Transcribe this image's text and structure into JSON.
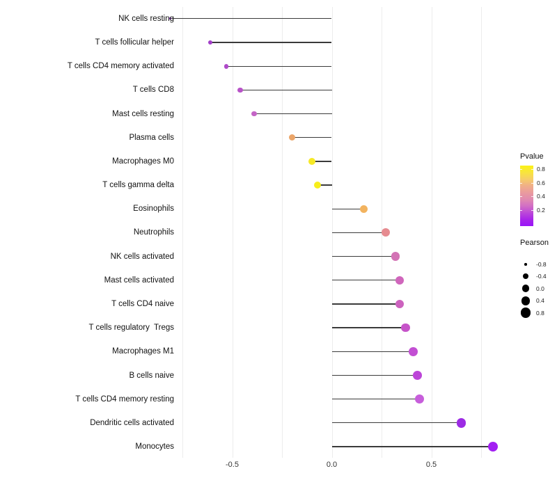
{
  "chart_data": {
    "type": "lollipop",
    "orientation": "horizontal",
    "title": "",
    "xlabel": "",
    "ylabel": "",
    "xlim": [
      -0.89,
      0.89
    ],
    "grid": "vertical, light gray, 0.25 steps",
    "x_ticks": [
      {
        "label": "-0.5",
        "value": -0.5
      },
      {
        "label": "0.0",
        "value": 0.0
      },
      {
        "label": "0.5",
        "value": 0.5
      }
    ],
    "gridline_values": [
      -0.75,
      -0.5,
      -0.25,
      0.0,
      0.25,
      0.5,
      0.75
    ],
    "points": [
      {
        "label": "NK cells resting",
        "pearson": -0.81,
        "pvalue_approx": 0.1,
        "color": "#8730C4"
      },
      {
        "label": "T cells follicular helper",
        "pearson": -0.61,
        "pvalue_approx": 0.15,
        "color": "#A23FC8"
      },
      {
        "label": "T cells CD4 memory activated",
        "pearson": -0.53,
        "pvalue_approx": 0.17,
        "color": "#AF4AC9"
      },
      {
        "label": "T cells CD8",
        "pearson": -0.46,
        "pvalue_approx": 0.19,
        "color": "#B853C8"
      },
      {
        "label": "Mast cells resting",
        "pearson": -0.39,
        "pvalue_approx": 0.22,
        "color": "#C464C6"
      },
      {
        "label": "Plasma cells",
        "pearson": -0.2,
        "pvalue_approx": 0.58,
        "color": "#EBA569"
      },
      {
        "label": "Macrophages M0",
        "pearson": -0.1,
        "pvalue_approx": 0.78,
        "color": "#F6E926"
      },
      {
        "label": "T cells gamma delta",
        "pearson": -0.07,
        "pvalue_approx": 0.8,
        "color": "#F7EE1B"
      },
      {
        "label": "Eosinophils",
        "pearson": 0.16,
        "pvalue_approx": 0.62,
        "color": "#F2B35F"
      },
      {
        "label": "Neutrophils",
        "pearson": 0.27,
        "pvalue_approx": 0.5,
        "color": "#E68B90"
      },
      {
        "label": "NK cells activated",
        "pearson": 0.32,
        "pvalue_approx": 0.32,
        "color": "#D373B5"
      },
      {
        "label": "Mast cells activated",
        "pearson": 0.34,
        "pvalue_approx": 0.28,
        "color": "#D066BC"
      },
      {
        "label": "T cells CD4 naive",
        "pearson": 0.34,
        "pvalue_approx": 0.26,
        "color": "#CC62BE"
      },
      {
        "label": "T cells regulatory  Tregs",
        "pearson": 0.37,
        "pvalue_approx": 0.22,
        "color": "#C654C9"
      },
      {
        "label": "Macrophages M1",
        "pearson": 0.41,
        "pvalue_approx": 0.19,
        "color": "#C24FD3"
      },
      {
        "label": "B cells naive",
        "pearson": 0.43,
        "pvalue_approx": 0.17,
        "color": "#BC45D8"
      },
      {
        "label": "T cells CD4 memory resting",
        "pearson": 0.44,
        "pvalue_approx": 0.23,
        "color": "#C75EDB"
      },
      {
        "label": "Dendritic cells activated",
        "pearson": 0.65,
        "pvalue_approx": 0.07,
        "color": "#9C2BE4"
      },
      {
        "label": "Monocytes",
        "pearson": 0.81,
        "pvalue_approx": 0.04,
        "color": "#A21FF2"
      }
    ],
    "legends": {
      "pvalue": {
        "title": "Pvalue",
        "position": "right",
        "ticks": [
          {
            "label": "0.8"
          },
          {
            "label": "0.6"
          },
          {
            "label": "0.4"
          },
          {
            "label": "0.2"
          }
        ],
        "gradient_top_to_bottom": [
          "#FBF116",
          "#F8E53C",
          "#F6CE67",
          "#F0AF88",
          "#EA9B9E",
          "#E18BB0",
          "#D26FC4",
          "#BC49D8",
          "#A825E9",
          "#9915F8"
        ]
      },
      "pearson": {
        "title": "Pearson",
        "position": "right",
        "entries": [
          {
            "label": "-0.8",
            "value": -0.8
          },
          {
            "label": "-0.4",
            "value": -0.4
          },
          {
            "label": "0.0",
            "value": 0.0
          },
          {
            "label": "0.4",
            "value": 0.4
          },
          {
            "label": "0.8",
            "value": 0.8
          }
        ],
        "dot_color": "#000000"
      }
    },
    "stem_color": "#3a3a3a"
  }
}
